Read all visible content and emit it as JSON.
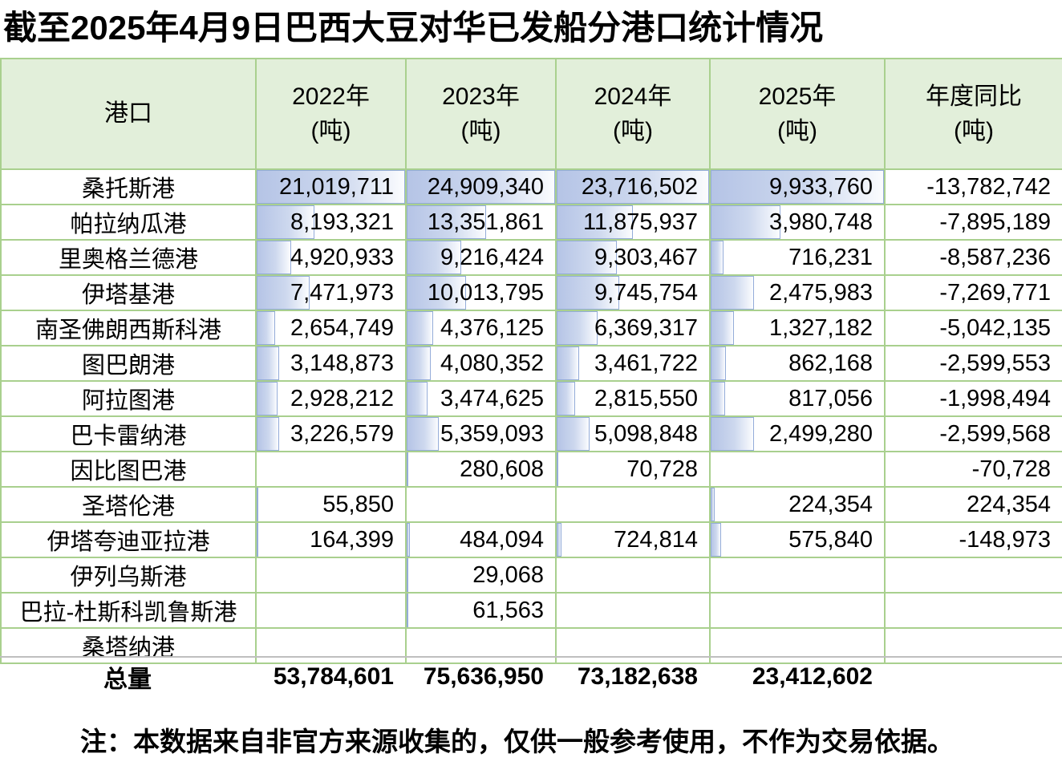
{
  "title": "截至2025年4月9日巴西大豆对华已发船分港口统计情况",
  "note": "注：本数据来自非官方来源收集的，仅供一般参考使用，不作为交易依据。",
  "colors": {
    "header_bg": "#e2efda",
    "grid_border": "#a9d08e",
    "data_bar_fill": "#b5c4e6",
    "data_bar_border": "#94acd9",
    "totals_rule": "#bfbfbf"
  },
  "table": {
    "columns": [
      {
        "label": "港口",
        "unit": ""
      },
      {
        "label": "2022年",
        "unit": "(吨)"
      },
      {
        "label": "2023年",
        "unit": "(吨)"
      },
      {
        "label": "2024年",
        "unit": "(吨)"
      },
      {
        "label": "2025年",
        "unit": "(吨)"
      },
      {
        "label": "年度同比",
        "unit": "(吨)"
      }
    ],
    "rows": [
      {
        "port": "桑托斯港",
        "values": [
          "21,019,711",
          "24,909,340",
          "23,716,502",
          "9,933,760",
          "-13,782,742"
        ]
      },
      {
        "port": "帕拉纳瓜港",
        "values": [
          "8,193,321",
          "13,351,861",
          "11,875,937",
          "3,980,748",
          "-7,895,189"
        ]
      },
      {
        "port": "里奥格兰德港",
        "values": [
          "4,920,933",
          "9,216,424",
          "9,303,467",
          "716,231",
          "-8,587,236"
        ]
      },
      {
        "port": "伊塔基港",
        "values": [
          "7,471,973",
          "10,013,795",
          "9,745,754",
          "2,475,983",
          "-7,269,771"
        ]
      },
      {
        "port": "南圣佛朗西斯科港",
        "values": [
          "2,654,749",
          "4,376,125",
          "6,369,317",
          "1,327,182",
          "-5,042,135"
        ]
      },
      {
        "port": "图巴朗港",
        "values": [
          "3,148,873",
          "4,080,352",
          "3,461,722",
          "862,168",
          "-2,599,553"
        ]
      },
      {
        "port": "阿拉图港",
        "values": [
          "2,928,212",
          "3,474,625",
          "2,815,550",
          "817,056",
          "-1,998,494"
        ]
      },
      {
        "port": "巴卡雷纳港",
        "values": [
          "3,226,579",
          "5,359,093",
          "5,098,848",
          "2,499,280",
          "-2,599,568"
        ]
      },
      {
        "port": "因比图巴港",
        "values": [
          "",
          "280,608",
          "70,728",
          "",
          "-70,728"
        ]
      },
      {
        "port": "圣塔伦港",
        "values": [
          "55,850",
          "",
          "",
          "224,354",
          "224,354"
        ]
      },
      {
        "port": "伊塔夸迪亚拉港",
        "values": [
          "164,399",
          "484,094",
          "724,814",
          "575,840",
          "-148,973"
        ]
      },
      {
        "port": "伊列乌斯港",
        "values": [
          "",
          "29,068",
          "",
          "",
          ""
        ]
      },
      {
        "port": "巴拉-杜斯科凯鲁斯港",
        "values": [
          "",
          "61,563",
          "",
          "",
          ""
        ]
      },
      {
        "port": "桑塔纳港",
        "values": [
          "",
          "",
          "",
          "",
          ""
        ]
      }
    ],
    "totals": {
      "label": "总量",
      "values": [
        "53,784,601",
        "75,636,950",
        "73,182,638",
        "23,412,602",
        ""
      ]
    }
  },
  "chart_data": {
    "type": "table",
    "title": "截至2025年4月9日巴西大豆对华已发船分港口统计情况",
    "columns": [
      "港口",
      "2022年(吨)",
      "2023年(吨)",
      "2024年(吨)",
      "2025年(吨)",
      "年度同比(吨)"
    ],
    "rows": [
      [
        "桑托斯港",
        21019711,
        24909340,
        23716502,
        9933760,
        -13782742
      ],
      [
        "帕拉纳瓜港",
        8193321,
        13351861,
        11875937,
        3980748,
        -7895189
      ],
      [
        "里奥格兰德港",
        4920933,
        9216424,
        9303467,
        716231,
        -8587236
      ],
      [
        "伊塔基港",
        7471973,
        10013795,
        9745754,
        2475983,
        -7269771
      ],
      [
        "南圣佛朗西斯科港",
        2654749,
        4376125,
        6369317,
        1327182,
        -5042135
      ],
      [
        "图巴朗港",
        3148873,
        4080352,
        3461722,
        862168,
        -2599553
      ],
      [
        "阿拉图港",
        2928212,
        3474625,
        2815550,
        817056,
        -1998494
      ],
      [
        "巴卡雷纳港",
        3226579,
        5359093,
        5098848,
        2499280,
        -2599568
      ],
      [
        "因比图巴港",
        null,
        280608,
        70728,
        null,
        -70728
      ],
      [
        "圣塔伦港",
        55850,
        null,
        null,
        224354,
        224354
      ],
      [
        "伊塔夸迪亚拉港",
        164399,
        484094,
        724814,
        575840,
        -148973
      ],
      [
        "伊列乌斯港",
        null,
        29068,
        null,
        null,
        null
      ],
      [
        "巴拉-杜斯科凯鲁斯港",
        null,
        61563,
        null,
        null,
        null
      ],
      [
        "桑塔纳港",
        null,
        null,
        null,
        null,
        null
      ]
    ],
    "totals": [
      "总量",
      53784601,
      75636950,
      73182638,
      23412602,
      null
    ]
  }
}
